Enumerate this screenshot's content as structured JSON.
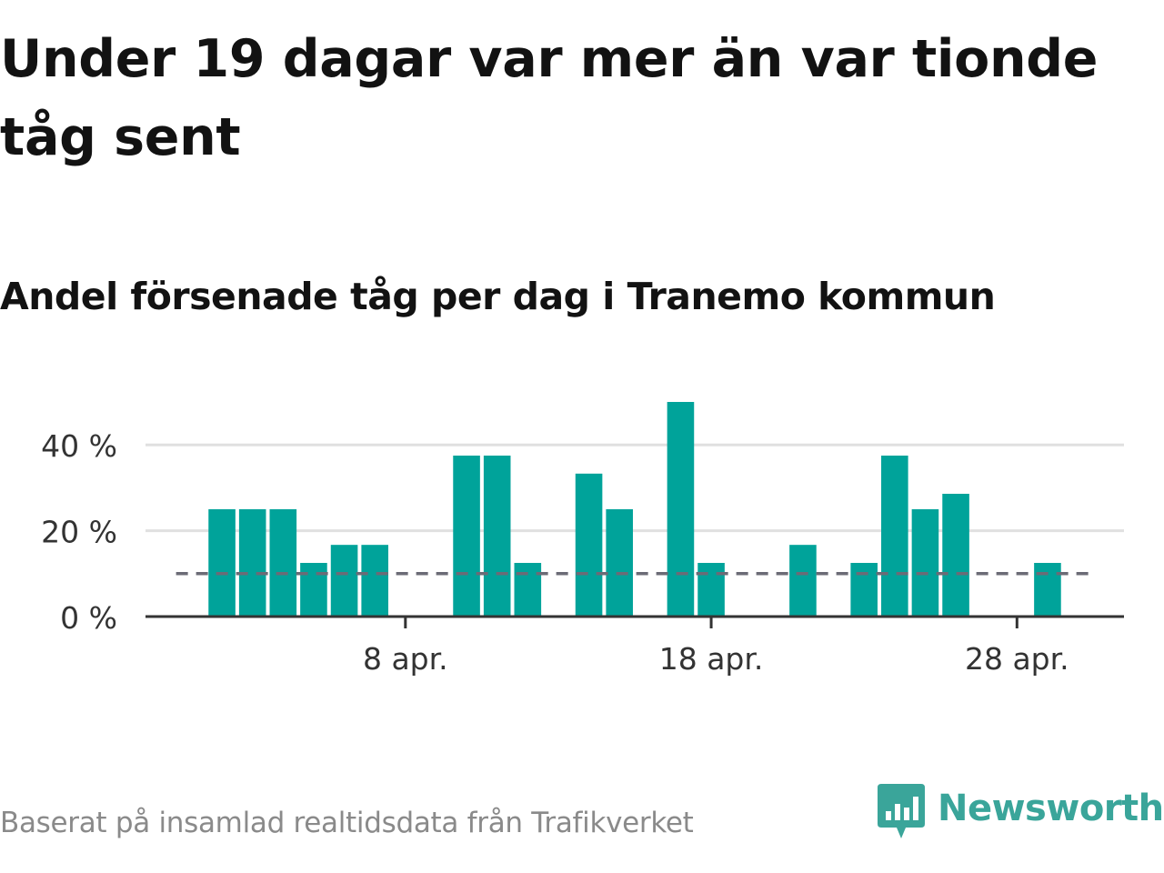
{
  "headline": "Under 19 dagar var mer än var tionde tåg sent",
  "subtitle": "Andel försenade tåg per dag i Tranemo kommun",
  "source": "Baserat på insamlad realtidsdata från Trafikverket",
  "brand": {
    "name": "Newsworthy",
    "logo_icon": "newsworthy-logo-icon"
  },
  "colors": {
    "bar": "#00a39a",
    "reference_line": "#6b6b76",
    "grid": "#e0e0e0",
    "axis": "#333333",
    "brand": "#3aa59a"
  },
  "chart_data": {
    "type": "bar",
    "title": "Andel försenade tåg per dag i Tranemo kommun",
    "xlabel": "",
    "ylabel": "",
    "x": [
      1,
      2,
      3,
      4,
      5,
      6,
      7,
      8,
      9,
      10,
      11,
      12,
      13,
      14,
      15,
      16,
      17,
      18,
      19,
      20,
      21,
      22,
      23,
      24,
      25,
      26,
      27,
      28,
      29,
      30
    ],
    "values": [
      0,
      25,
      25,
      25,
      12.5,
      16.7,
      16.7,
      0,
      0,
      37.5,
      37.5,
      12.5,
      0,
      33.3,
      25,
      0,
      50,
      12.5,
      0,
      0,
      16.7,
      0,
      12.5,
      37.5,
      25,
      28.6,
      0,
      0,
      12.5,
      0
    ],
    "xlim": [
      -0.5,
      31.5
    ],
    "ylim": [
      0,
      50
    ],
    "yticks": [
      0,
      20,
      40
    ],
    "ytick_labels": [
      "0 %",
      "20 %",
      "40 %"
    ],
    "xticks": [
      8,
      18,
      28
    ],
    "xtick_labels": [
      "8 apr.",
      "18 apr.",
      "28 apr."
    ],
    "reference_line": {
      "value": 10,
      "x_start": 0.5,
      "x_end": 30.5
    },
    "grid": true,
    "legend": "none"
  }
}
